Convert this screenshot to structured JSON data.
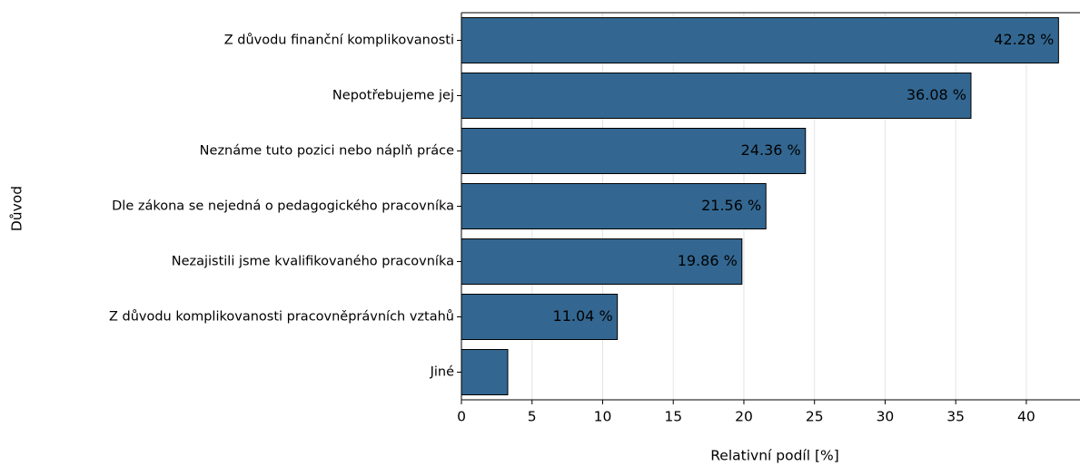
{
  "chart_data": {
    "type": "barh",
    "xlabel": "Relativní podíl [%]",
    "ylabel": "Důvod",
    "categories": [
      "Z důvodu finanční komplikovanosti",
      "Nepotřebujeme jej",
      "Neznáme tuto pozici nebo náplň práce",
      "Dle zákona se nejedná o pedagogického pracovníka",
      "Nezajistili jsme kvalifikovaného pracovníka",
      "Z důvodu komplikovanosti pracovněprávních vztahů",
      "Jiné"
    ],
    "values": [
      42.28,
      36.08,
      24.36,
      21.56,
      19.86,
      11.04,
      3.28
    ],
    "value_labels": [
      "42.28 %",
      "36.08 %",
      "24.36 %",
      "21.56 %",
      "19.86 %",
      "11.04 %",
      null
    ],
    "color": "#336791",
    "xlim": [
      0,
      43.8
    ],
    "xticks": [
      0,
      5,
      10,
      15,
      20,
      25,
      30,
      35,
      40
    ],
    "grid": true
  }
}
